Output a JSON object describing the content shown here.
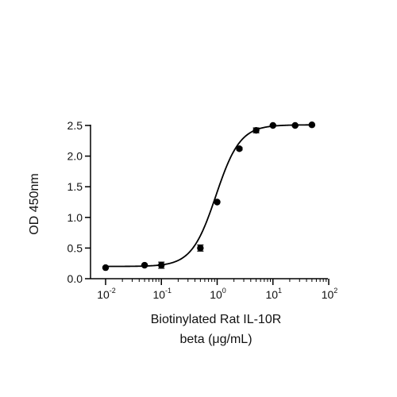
{
  "chart_data": {
    "type": "scatter",
    "title": "",
    "ylabel": "OD 450nm",
    "xlabel_lines": [
      "Biotinylated Rat IL-10R",
      "beta (μg/mL)"
    ],
    "x_scale": "log10",
    "xlim": [
      0.01,
      100
    ],
    "ylim": [
      0,
      2.5
    ],
    "grid": false,
    "legend": "none",
    "y_ticks": [
      "0.0",
      "0.5",
      "1.0",
      "1.5",
      "2.0",
      "2.5"
    ],
    "y_tick_values": [
      0,
      0.5,
      1.0,
      1.5,
      2.0,
      2.5
    ],
    "x_tick_values": [
      0.01,
      0.1,
      1,
      10,
      100
    ],
    "x_tick_labels": [
      {
        "base": "10",
        "exp": "-2"
      },
      {
        "base": "10",
        "exp": "-1"
      },
      {
        "base": "10",
        "exp": "0"
      },
      {
        "base": "10",
        "exp": "1"
      },
      {
        "base": "10",
        "exp": "2"
      }
    ],
    "series": [
      {
        "x": [
          0.01,
          0.05,
          0.1,
          0.5,
          1,
          2.5,
          5,
          10,
          25,
          50
        ],
        "y": [
          0.18,
          0.22,
          0.22,
          0.5,
          1.25,
          2.12,
          2.42,
          2.5,
          2.5,
          2.51
        ],
        "error": [
          0.01,
          0.01,
          0.05,
          0.05,
          0.01,
          0.02,
          0.04,
          0.01,
          0.01,
          0.01
        ]
      }
    ],
    "fit": {
      "model": "4PL",
      "bottom": 0.2,
      "top": 2.51,
      "ec50": 0.95,
      "hill": 2.0
    },
    "color": "#000000"
  }
}
